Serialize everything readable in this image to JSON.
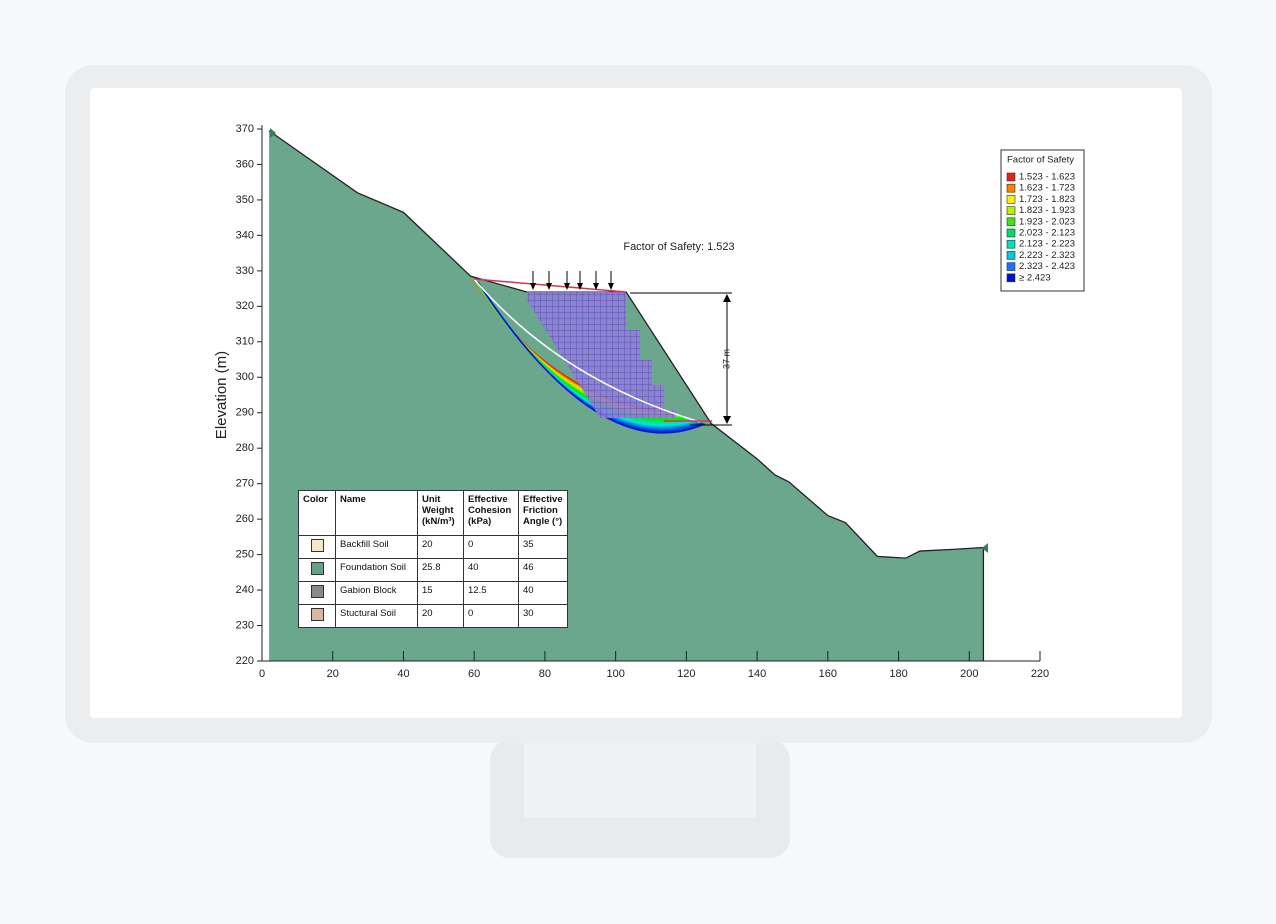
{
  "chart_data": {
    "type": "area",
    "ylabel": "Elevation (m)",
    "x": [
      2,
      27,
      40,
      59,
      75,
      103,
      127,
      140,
      145,
      149,
      160,
      165,
      174,
      182,
      186,
      196,
      204
    ],
    "values": [
      369.5,
      352,
      346.5,
      328.5,
      324,
      324,
      287,
      277,
      272.5,
      270.5,
      261,
      259,
      249.5,
      249,
      251,
      251.5,
      252
    ],
    "color": "#62a287",
    "xlim": [
      0,
      220
    ],
    "xticks": [
      0,
      20,
      40,
      60,
      80,
      100,
      120,
      140,
      160,
      180,
      200,
      220
    ],
    "ylim": [
      220,
      370
    ],
    "yticks": [
      220,
      230,
      240,
      250,
      260,
      270,
      280,
      290,
      300,
      310,
      320,
      330,
      340,
      350,
      360,
      370
    ],
    "annotations": {
      "factor_of_safety": "Factor of Safety: 1.523",
      "height": "37 m"
    },
    "legend": {
      "title": "Factor of Safety",
      "position": "upper right",
      "items": [
        {
          "label": "1.523 - 1.623",
          "color": "#e8201a"
        },
        {
          "label": "1.623 - 1.723",
          "color": "#ff7f00"
        },
        {
          "label": "1.723 - 1.823",
          "color": "#ffee00"
        },
        {
          "label": "1.823 - 1.923",
          "color": "#b8f000"
        },
        {
          "label": "1.923 - 2.023",
          "color": "#40e020"
        },
        {
          "label": "2.023 - 2.123",
          "color": "#00d870"
        },
        {
          "label": "2.123 - 2.223",
          "color": "#00e0b0"
        },
        {
          "label": "2.223 - 2.323",
          "color": "#00c8e0"
        },
        {
          "label": "2.323 - 2.423",
          "color": "#2070ff"
        },
        {
          "label": "≥ 2.423",
          "color": "#0010d0"
        }
      ]
    }
  },
  "material_table": {
    "headers": [
      "Color",
      "Name",
      "Unit Weight (kN/m³)",
      "Effective Cohesion (kPa)",
      "Effective Friction Angle (°)"
    ],
    "rows": [
      {
        "color": "#f6e6c6",
        "name": "Backfill Soil",
        "unit_weight": 20,
        "cohesion": 0,
        "friction_angle": 35
      },
      {
        "color": "#62a287",
        "name": "Foundation Soil",
        "unit_weight": 25.8,
        "cohesion": 40,
        "friction_angle": 46
      },
      {
        "color": "#8a8a8a",
        "name": "Gabion Block",
        "unit_weight": 15,
        "cohesion": 12.5,
        "friction_angle": 40
      },
      {
        "color": "#d9b8a0",
        "name": "Stuctural Soil",
        "unit_weight": 20,
        "cohesion": 0,
        "friction_angle": 30
      }
    ]
  }
}
